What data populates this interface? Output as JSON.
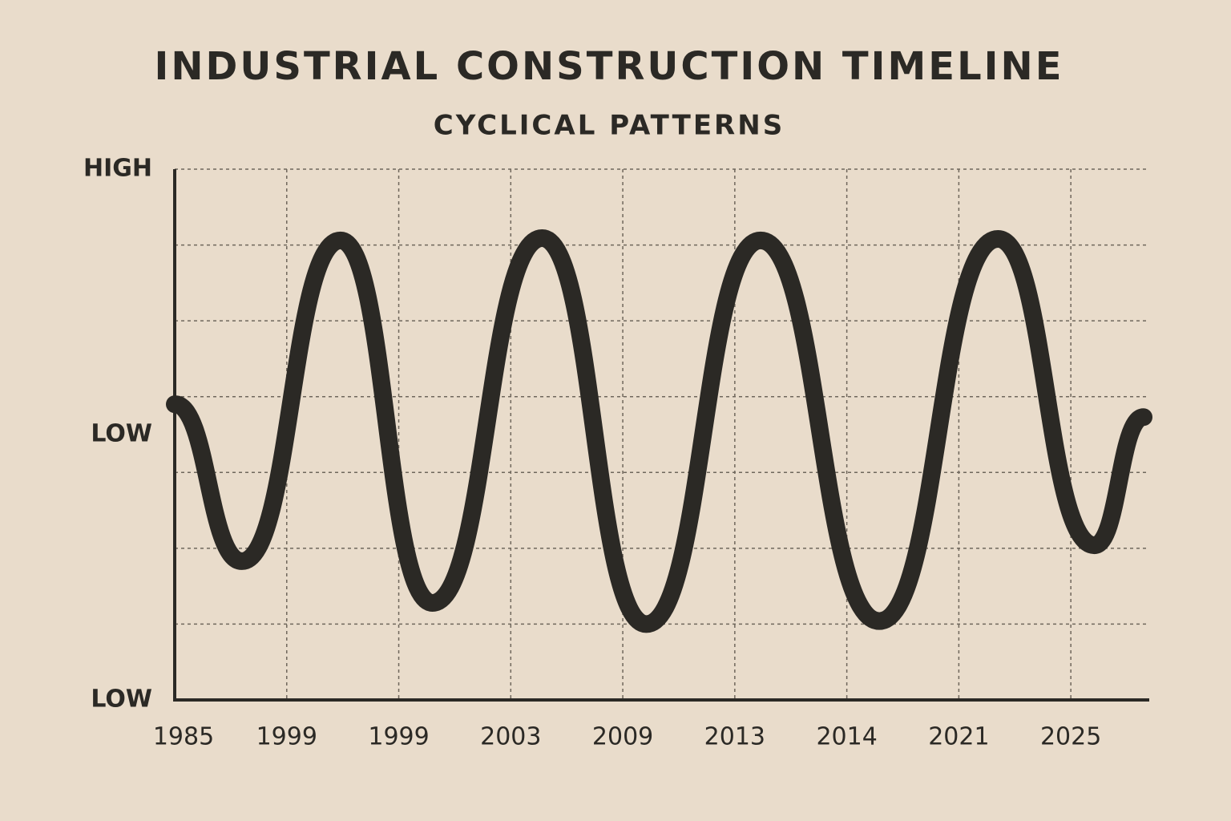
{
  "chart_data": {
    "type": "line",
    "title": "INDUSTRIAL CONSTRUCTION TIMELINE",
    "subtitle": "CYCLICAL PATTERNS",
    "categories": [
      "1985",
      "1999",
      "1999",
      "2003",
      "2009",
      "2013",
      "2014",
      "2021",
      "2025"
    ],
    "series": [
      {
        "color": "#2b2925",
        "x": [
          0,
          0.6,
          1.48,
          2.3,
          3.28,
          4.21,
          5.23,
          6.29,
          7.35,
          8.21,
          8.65
        ],
        "values": [
          3.9,
          1.83,
          6.06,
          1.28,
          6.09,
          1.0,
          6.06,
          1.04,
          6.08,
          2.04,
          3.73
        ]
      }
    ],
    "xlim": [
      0,
      8.7
    ],
    "ylim": [
      0,
      7
    ],
    "yticks": [
      {
        "value": 0,
        "label": "LOW"
      },
      {
        "value": 3.5,
        "label": "LOW"
      },
      {
        "value": 7,
        "label": "HIGH"
      }
    ],
    "ygrid": [
      1,
      2,
      3,
      4,
      5,
      6,
      7
    ],
    "grid": true
  }
}
